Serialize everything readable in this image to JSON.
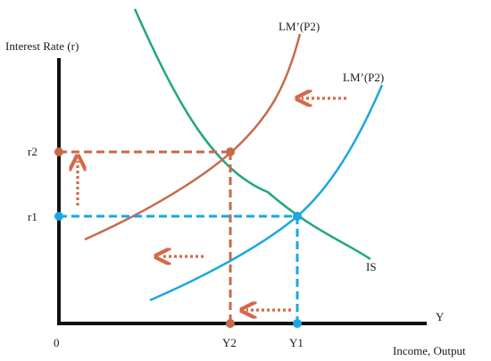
{
  "axes": {
    "y_label": "Interest Rate (r)",
    "x_label": "Income, Output",
    "x_symbol": "Y",
    "origin": "0"
  },
  "curves": {
    "lm_upper_label": "LM’(P2)",
    "lm_lower_label": "LM’(P2)",
    "is_label": "IS"
  },
  "levels": {
    "r2": "r2",
    "r1": "r1",
    "y2": "Y2",
    "y1": "Y1"
  },
  "colors": {
    "axis": "#111111",
    "lm_upper": "#c8694a",
    "lm_lower": "#1aa7e2",
    "is": "#22a878",
    "guide_upper": "#c8694a",
    "guide_lower": "#1aa7e2",
    "arrow": "#d2694a"
  }
}
